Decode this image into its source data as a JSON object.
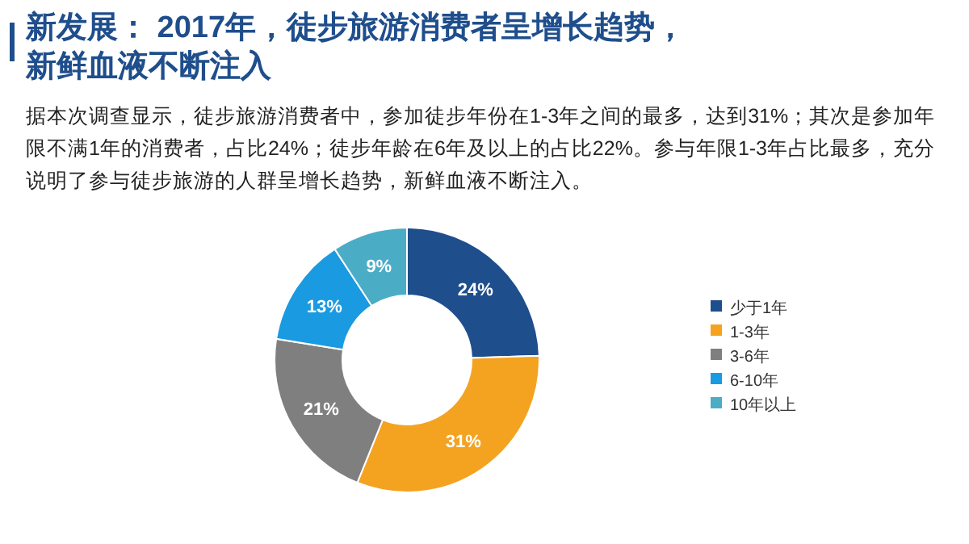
{
  "chart_data": {
    "type": "donut",
    "title": "新发展： 2017年，徒步旅游消费者呈增长趋势，新鲜血液不断注入",
    "subtitle": "据本次调查显示，徒步旅游消费者中，参加徒步年份在1-3年之间的最多，达到31%；其次是参加年限不满1年的消费者，占比24%；徒步年龄在6年及以上的占比22%。参与年限1-3年占比最多，充分说明了参与徒步旅游的人群呈增长趋势，新鲜血液不断注入。",
    "categories": [
      "少于1年",
      "1-3年",
      "3-6年",
      "6-10年",
      "10年以上"
    ],
    "values": [
      24,
      31,
      21,
      13,
      9
    ],
    "value_labels": [
      "24%",
      "31%",
      "21%",
      "13%",
      "9%"
    ],
    "colors": [
      "#1f4e8c",
      "#f4a321",
      "#7f7f80",
      "#1a9ae0",
      "#4bacc6"
    ],
    "legend": "right"
  }
}
